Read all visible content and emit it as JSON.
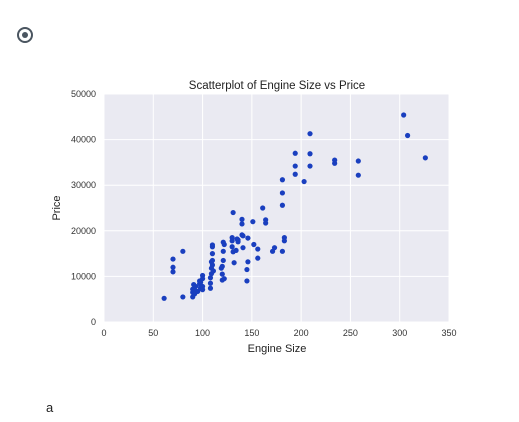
{
  "option": {
    "selected": true
  },
  "answer_label": "a",
  "chart_data": {
    "type": "scatter",
    "title": "Scatterplot of Engine Size vs Price",
    "xlabel": "Engine Size",
    "ylabel": "Price",
    "xlim": [
      0,
      350
    ],
    "ylim": [
      0,
      50000
    ],
    "xticks": [
      "0",
      "50",
      "100",
      "150",
      "200",
      "250",
      "300",
      "350"
    ],
    "yticks": [
      "0",
      "10000",
      "20000",
      "30000",
      "40000",
      "50000"
    ],
    "grid": true,
    "point_color": "#1a3fbf",
    "plot_bg": "#eaeaf2",
    "grid_color": "#ffffff",
    "x": [
      61,
      70,
      70,
      70,
      80,
      80,
      90,
      90,
      90,
      91,
      92,
      92,
      93,
      95,
      97,
      97,
      98,
      98,
      98,
      100,
      100,
      100,
      100,
      108,
      108,
      108,
      109,
      109,
      109,
      110,
      110,
      110,
      110,
      110,
      111,
      119,
      120,
      120,
      120,
      121,
      121,
      121,
      122,
      122,
      130,
      130,
      130,
      131,
      131,
      132,
      134,
      135,
      136,
      136,
      140,
      140,
      140,
      141,
      141,
      145,
      145,
      146,
      146,
      151,
      152,
      156,
      156,
      161,
      164,
      164,
      171,
      173,
      181,
      181,
      181,
      181,
      183,
      183,
      194,
      194,
      194,
      203,
      209,
      209,
      209,
      234,
      234,
      258,
      258,
      304,
      308,
      326
    ],
    "y": [
      5200,
      11000,
      12000,
      13800,
      5500,
      15500,
      5500,
      6500,
      7200,
      8200,
      6200,
      7000,
      7800,
      6700,
      8400,
      9000,
      7300,
      7600,
      8700,
      7100,
      7800,
      9500,
      10200,
      7400,
      8500,
      9700,
      10600,
      11800,
      13200,
      12500,
      13500,
      15000,
      16500,
      16900,
      11200,
      11800,
      9200,
      10500,
      12200,
      13500,
      15500,
      17500,
      9500,
      17000,
      16500,
      17800,
      18500,
      15400,
      24000,
      13000,
      15700,
      18200,
      17600,
      18000,
      22500,
      21500,
      19100,
      16300,
      18900,
      9000,
      11500,
      13200,
      18400,
      22000,
      17000,
      14000,
      16000,
      25000,
      21700,
      22400,
      15500,
      16300,
      31200,
      28300,
      25600,
      15500,
      17800,
      18500,
      34200,
      32400,
      37000,
      30800,
      41300,
      36900,
      34200,
      34800,
      35500,
      32200,
      35300,
      45400,
      40900,
      36000
    ]
  }
}
